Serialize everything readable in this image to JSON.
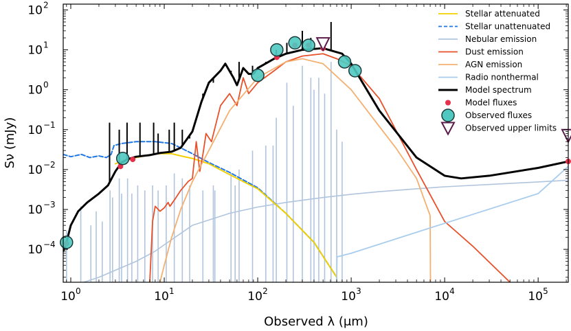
{
  "chart_data": {
    "type": "line",
    "xlabel": "Observed λ (μm)",
    "ylabel": "Sν (mJy)",
    "xscale": "log",
    "yscale": "log",
    "xlim": [
      0.83,
      210000
    ],
    "ylim": [
      1.5e-05,
      140
    ],
    "x_ticks": [
      {
        "value": 1,
        "label": "10",
        "exp": "0"
      },
      {
        "value": 10,
        "label": "10",
        "exp": "1"
      },
      {
        "value": 100,
        "label": "10",
        "exp": "2"
      },
      {
        "value": 1000,
        "label": "10",
        "exp": "3"
      },
      {
        "value": 10000,
        "label": "10",
        "exp": "4"
      },
      {
        "value": 100000,
        "label": "10",
        "exp": "5"
      }
    ],
    "y_ticks": [
      {
        "value": 0.0001,
        "label": "10",
        "exp": "−4"
      },
      {
        "value": 0.001,
        "label": "10",
        "exp": "−3"
      },
      {
        "value": 0.01,
        "label": "10",
        "exp": "−2"
      },
      {
        "value": 0.1,
        "label": "10",
        "exp": "−1"
      },
      {
        "value": 1,
        "label": "10",
        "exp": "0"
      },
      {
        "value": 10,
        "label": "10",
        "exp": "1"
      },
      {
        "value": 100,
        "label": "10",
        "exp": "2"
      }
    ],
    "legend_position": "top-right",
    "series": [
      {
        "name": "Nebular emission",
        "color": "#b0c4de",
        "width": 1.6,
        "x": [
          1,
          1.5,
          2,
          3,
          5,
          8,
          10,
          20,
          50,
          100,
          200,
          500,
          1000,
          2000,
          5000,
          10000,
          50000,
          100000,
          210000
        ],
        "y": [
          1.2e-05,
          1.6e-05,
          2e-05,
          3e-05,
          5e-05,
          9e-05,
          0.00013,
          0.0004,
          0.0008,
          0.00115,
          0.0015,
          0.002,
          0.0024,
          0.0028,
          0.0033,
          0.0037,
          0.0045,
          0.0049,
          0.0054
        ],
        "lines": [
          [
            0.9,
            0.0003
          ],
          [
            1.28,
            0.0012
          ],
          [
            1.64,
            0.0004
          ],
          [
            1.87,
            0.0009
          ],
          [
            2.17,
            0.0005
          ],
          [
            2.63,
            0.003
          ],
          [
            2.8,
            0.002
          ],
          [
            3.3,
            0.006
          ],
          [
            3.5,
            0.0025
          ],
          [
            4.05,
            0.006
          ],
          [
            4.5,
            0.0025
          ],
          [
            5.2,
            0.004
          ],
          [
            6.2,
            0.003
          ],
          [
            7.5,
            0.004
          ],
          [
            8.6,
            0.003
          ],
          [
            10.5,
            0.004
          ],
          [
            12.8,
            0.008
          ],
          [
            15.6,
            0.006
          ],
          [
            18.7,
            0.004
          ],
          [
            25.9,
            0.003
          ],
          [
            33.5,
            0.004
          ],
          [
            34.8,
            0.003
          ],
          [
            51.8,
            0.008
          ],
          [
            57.3,
            0.004
          ],
          [
            63.2,
            0.01
          ],
          [
            88,
            0.03
          ],
          [
            122,
            0.04
          ],
          [
            146,
            0.04
          ],
          [
            158,
            0.2
          ],
          [
            205,
            1.5
          ],
          [
            240,
            0.4
          ],
          [
            300,
            4.0
          ],
          [
            370,
            2.0
          ],
          [
            400,
            1.0
          ],
          [
            450,
            2.0
          ],
          [
            520,
            0.8
          ],
          [
            609,
            5.0
          ],
          [
            700,
            0.1
          ],
          [
            800,
            0.05
          ]
        ]
      },
      {
        "name": "Stellar unattenuated",
        "color": "#1f77e4",
        "width": 2,
        "dash": "6,3",
        "x": [
          0.83,
          1,
          1.3,
          1.6,
          2,
          2.4,
          2.7,
          2.9,
          3.5,
          5,
          8,
          12,
          15,
          20,
          30,
          50,
          70,
          100,
          200,
          400,
          700
        ],
        "y": [
          0.024,
          0.021,
          0.024,
          0.02,
          0.022,
          0.02,
          0.024,
          0.04,
          0.045,
          0.05,
          0.05,
          0.045,
          0.035,
          0.025,
          0.015,
          0.0085,
          0.0055,
          0.0035,
          0.0008,
          0.00015,
          2e-05
        ]
      },
      {
        "name": "Stellar attenuated",
        "color": "#f0d000",
        "width": 2,
        "x": [
          3,
          3.5,
          5,
          8,
          12,
          15,
          20,
          30,
          50,
          70,
          100,
          200,
          400,
          700
        ],
        "y": [
          0.014,
          0.016,
          0.02,
          0.025,
          0.025,
          0.022,
          0.019,
          0.014,
          0.0075,
          0.005,
          0.0033,
          0.0008,
          0.00015,
          2e-05
        ]
      },
      {
        "name": "Dust emission",
        "color": "#e8502a",
        "width": 1.8,
        "x": [
          7,
          7.5,
          8,
          9,
          10,
          11,
          11.5,
          13,
          15,
          18,
          20,
          22,
          24,
          26,
          28,
          32,
          40,
          50,
          60,
          70,
          80,
          100,
          150,
          200,
          300,
          500,
          700,
          1000,
          2000,
          5000,
          10000,
          20000,
          50000
        ],
        "y": [
          1.5e-05,
          0.0005,
          0.0012,
          0.0009,
          0.0011,
          0.0015,
          0.0012,
          0.0018,
          0.003,
          0.005,
          0.006,
          0.05,
          0.009,
          0.025,
          0.08,
          0.05,
          0.4,
          0.8,
          0.4,
          2,
          0.8,
          1.5,
          3,
          5,
          7,
          8,
          6,
          4,
          0.6,
          0.01,
          0.0005,
          0.00012,
          1.5e-05
        ]
      },
      {
        "name": "AGN emission",
        "color": "#f4b070",
        "width": 1.8,
        "x": [
          9,
          10,
          12,
          15,
          20,
          30,
          50,
          100,
          200,
          300,
          500,
          1000,
          2000,
          3000,
          5000,
          7000,
          7050
        ],
        "y": [
          1.5e-05,
          4e-05,
          0.0002,
          0.001,
          0.005,
          0.03,
          0.3,
          2,
          5,
          6,
          4.5,
          1,
          0.12,
          0.035,
          0.006,
          0.0007,
          1.5e-05
        ]
      },
      {
        "name": "Radio nonthermal",
        "color": "#a8ccee",
        "width": 1.8,
        "x": [
          700,
          705,
          1000,
          10000,
          100000,
          210000
        ],
        "y": [
          1.5e-05,
          6.5e-05,
          8e-05,
          0.00045,
          0.0025,
          0.012
        ]
      },
      {
        "name": "Model spectrum",
        "color": "#000000",
        "width": 3,
        "x": [
          0.83,
          0.9,
          1,
          1.2,
          1.5,
          2,
          2.5,
          3,
          3.5,
          4,
          5,
          7,
          9,
          12,
          15,
          20,
          25,
          30,
          40,
          45,
          55,
          60,
          70,
          80,
          90,
          100,
          150,
          200,
          300,
          500,
          800,
          1000,
          2000,
          5000,
          10000,
          15000,
          30000,
          100000,
          210000
        ],
        "y": [
          9e-05,
          0.00015,
          0.0004,
          0.0009,
          0.0015,
          0.0025,
          0.004,
          0.009,
          0.015,
          0.018,
          0.021,
          0.023,
          0.026,
          0.028,
          0.035,
          0.09,
          0.5,
          1.5,
          3,
          4.5,
          2,
          1.3,
          3.5,
          2.5,
          2.5,
          3.5,
          6,
          8,
          10,
          11,
          8,
          4.5,
          0.3,
          0.02,
          0.007,
          0.006,
          0.007,
          0.011,
          0.016
        ],
        "spikes": [
          [
            2.6,
            0.15
          ],
          [
            3.3,
            0.1
          ],
          [
            4.0,
            0.15
          ],
          [
            5.5,
            0.15
          ],
          [
            7.7,
            0.15
          ],
          [
            8.6,
            0.08
          ],
          [
            11.3,
            0.1
          ],
          [
            12.8,
            0.15
          ],
          [
            15.6,
            0.1
          ],
          [
            18.7,
            0.06
          ],
          [
            25.9,
            0.8
          ],
          [
            33.5,
            1.5
          ],
          [
            51.8,
            3
          ],
          [
            63.2,
            5
          ],
          [
            88,
            4
          ],
          [
            122,
            5
          ],
          [
            158,
            10
          ],
          [
            205,
            15
          ],
          [
            300,
            30
          ],
          [
            370,
            20
          ],
          [
            609,
            50
          ]
        ]
      }
    ],
    "model_fluxes": {
      "name": "Model fluxes",
      "color": "#e8304a",
      "x": [
        0.9,
        3.4,
        4.6,
        160,
        250,
        350,
        500,
        210000
      ],
      "y": [
        0.00014,
        0.012,
        0.018,
        6.5,
        13,
        13,
        11,
        0.016
      ]
    },
    "observed_fluxes": {
      "name": "Observed fluxes",
      "color": "#4fc9c0",
      "x": [
        0.9,
        3.6,
        100,
        160,
        250,
        350,
        850,
        1100
      ],
      "y": [
        0.00015,
        0.019,
        2.3,
        10,
        15,
        13,
        5,
        3
      ]
    },
    "upper_limits": {
      "name": "Observed upper limits",
      "color": "#5a1a4a",
      "x": [
        500,
        210000
      ],
      "y": [
        14,
        0.07
      ]
    },
    "legend": [
      {
        "label": "Stellar attenuated",
        "kind": "line",
        "color": "#f0d000",
        "dash": ""
      },
      {
        "label": "Stellar unattenuated",
        "kind": "line",
        "color": "#1f77e4",
        "dash": "5,3"
      },
      {
        "label": "Nebular emission",
        "kind": "line",
        "color": "#b0c4de",
        "dash": ""
      },
      {
        "label": "Dust emission",
        "kind": "line",
        "color": "#e8502a",
        "dash": ""
      },
      {
        "label": "AGN emission",
        "kind": "line",
        "color": "#f4b070",
        "dash": ""
      },
      {
        "label": "Radio nonthermal",
        "kind": "line",
        "color": "#a8ccee",
        "dash": ""
      },
      {
        "label": "Model spectrum",
        "kind": "line-thick",
        "color": "#000000",
        "dash": ""
      },
      {
        "label": "Model fluxes",
        "kind": "dot",
        "color": "#e8304a",
        "dash": ""
      },
      {
        "label": "Observed fluxes",
        "kind": "circle",
        "color": "#4fc9c0",
        "dash": ""
      },
      {
        "label": "Observed upper limits",
        "kind": "triangle",
        "color": "#5a1a4a",
        "dash": ""
      }
    ]
  }
}
